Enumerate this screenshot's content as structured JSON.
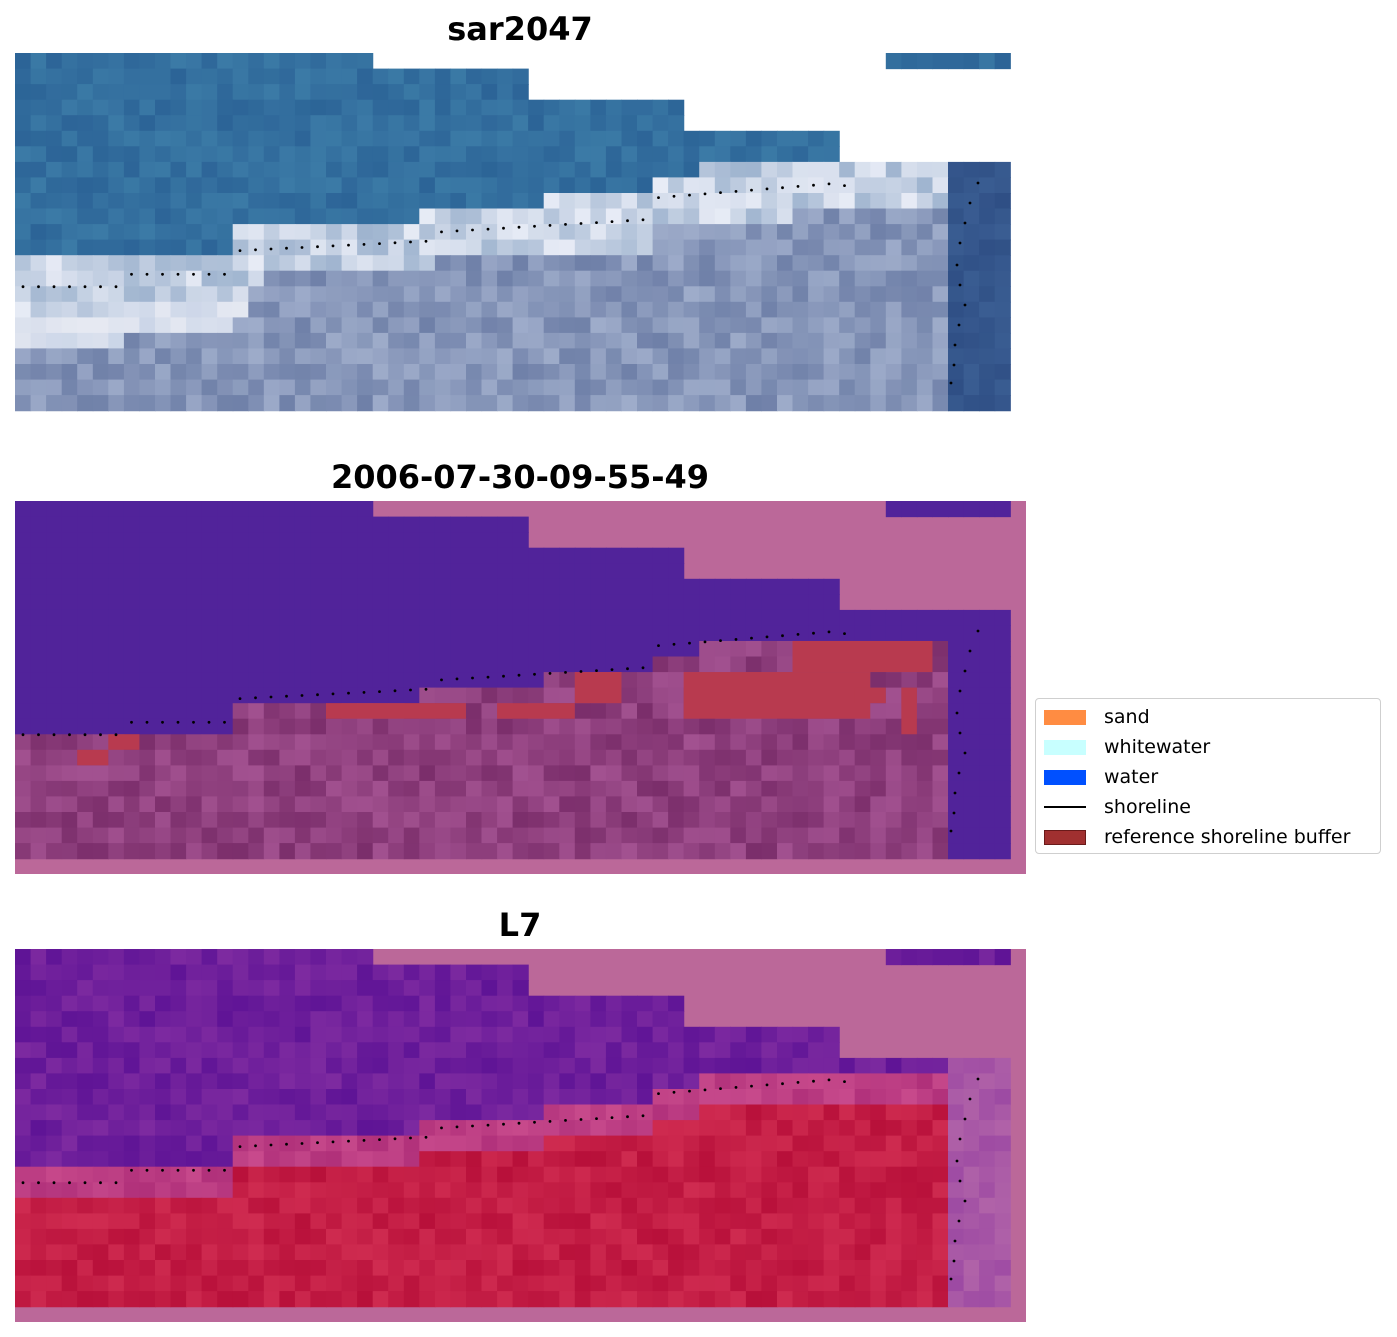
{
  "panels": [
    {
      "title": "sar2047"
    },
    {
      "title": "2006-07-30-09-55-49"
    },
    {
      "title": "L7"
    }
  ],
  "legend": {
    "items": [
      {
        "label": "sand",
        "color": "#ff8c42",
        "kind": "patch"
      },
      {
        "label": "whitewater",
        "color": "#c8ffff",
        "kind": "patch"
      },
      {
        "label": "water",
        "color": "#0050ff",
        "kind": "patch"
      },
      {
        "label": "shoreline",
        "color": "#000000",
        "kind": "line"
      },
      {
        "label": "reference shoreline buffer",
        "color": "#a03030",
        "kind": "patch"
      }
    ]
  },
  "colors": {
    "rgb_water": "#2e6a99",
    "rgb_whitewater": "#dfe6f2",
    "rgb_land": "#7f8eb2",
    "class_water": "#51239a",
    "class_land": "#8a3f7c",
    "nodata_pink": "#bb6899",
    "buffer": "#b83a4f",
    "prob_water": "#6c1a98",
    "prob_land": "#c0163c"
  }
}
